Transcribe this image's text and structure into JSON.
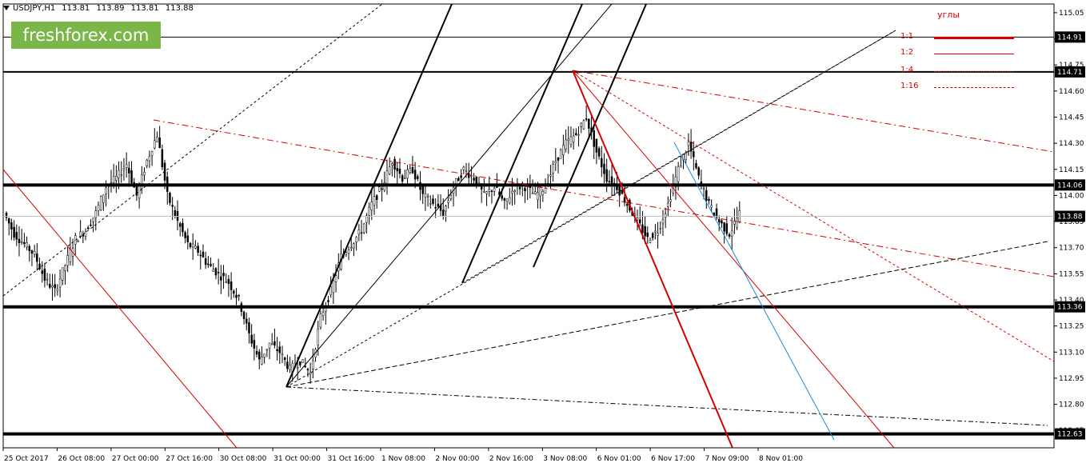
{
  "header": {
    "symbol": "USDJPY,H1",
    "open": "113.81",
    "high": "113.89",
    "low": "113.81",
    "close": "113.88"
  },
  "logo": {
    "text": "freshforex.com",
    "color": "#7ab648"
  },
  "angles_legend": {
    "title": "углы",
    "color": "#d40000",
    "items": [
      {
        "label": "1:1",
        "style": "solid-thick"
      },
      {
        "label": "1:2",
        "style": "solid"
      },
      {
        "label": "1:4",
        "style": "dotted"
      },
      {
        "label": "1:16",
        "style": "dash-dot"
      }
    ]
  },
  "chart_data": {
    "type": "candlestick",
    "symbol": "USDJPY",
    "timeframe": "H1",
    "ylim": [
      112.55,
      115.1
    ],
    "y_ticks": [
      "115.05",
      "114.90",
      "114.75",
      "114.60",
      "114.45",
      "114.30",
      "114.15",
      "114.00",
      "113.85",
      "113.70",
      "113.55",
      "113.40",
      "113.25",
      "113.10",
      "112.95",
      "112.80",
      "112.65"
    ],
    "x_ticks": [
      "25 Oct 2017",
      "26 Oct 08:00",
      "27 Oct 00:00",
      "27 Oct 16:00",
      "30 Oct 08:00",
      "31 Oct 00:00",
      "31 Oct 16:00",
      "1 Nov 08:00",
      "2 Nov 00:00",
      "2 Nov 16:00",
      "3 Nov 08:00",
      "6 Nov 01:00",
      "6 Nov 17:00",
      "7 Nov 09:00",
      "8 Nov 01:00"
    ],
    "levels": [
      {
        "label": "114.91",
        "value": 114.91,
        "style": "thin"
      },
      {
        "label": "114.71",
        "value": 114.71,
        "style": "medium"
      },
      {
        "label": "114.06",
        "value": 114.06,
        "style": "thick"
      },
      {
        "label": "113.88",
        "value": 113.88,
        "style": "current"
      },
      {
        "label": "113.36",
        "value": 113.36,
        "style": "thick"
      },
      {
        "label": "112.63",
        "value": 112.63,
        "style": "thick"
      }
    ],
    "close_path": [
      113.9,
      113.78,
      113.72,
      113.66,
      113.52,
      113.45,
      113.6,
      113.75,
      113.8,
      113.9,
      114.05,
      114.1,
      114.18,
      114.0,
      114.2,
      114.35,
      114.0,
      113.85,
      113.72,
      113.68,
      113.6,
      113.55,
      113.5,
      113.4,
      113.2,
      113.05,
      113.15,
      113.1,
      113.0,
      113.05,
      112.98,
      113.3,
      113.45,
      113.65,
      113.72,
      113.8,
      113.95,
      114.05,
      114.2,
      114.1,
      114.15,
      114.0,
      113.95,
      113.9,
      114.05,
      114.15,
      114.1,
      114.0,
      114.05,
      113.95,
      114.05,
      114.05,
      114.0,
      114.05,
      114.2,
      114.3,
      114.35,
      114.45,
      114.25,
      114.1,
      114.05,
      113.95,
      113.85,
      113.75,
      113.8,
      113.95,
      114.15,
      114.3,
      114.1,
      113.95,
      113.85,
      113.78,
      113.9
    ]
  }
}
